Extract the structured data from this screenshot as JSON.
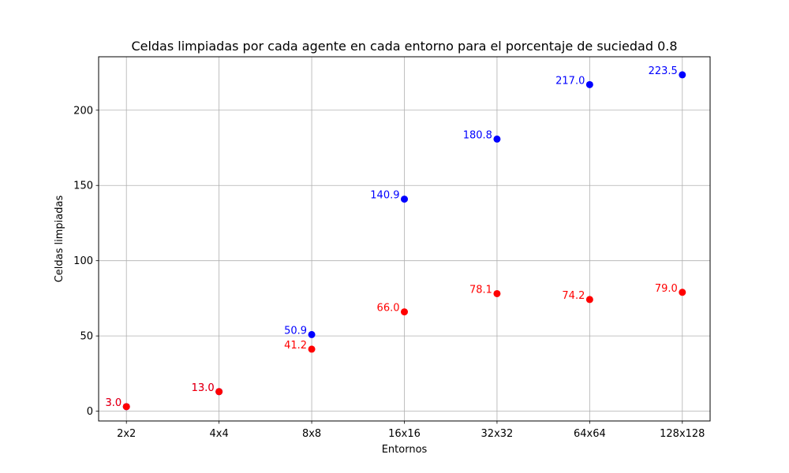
{
  "chart_data": {
    "type": "scatter",
    "title": "Celdas limpiadas por cada agente en cada entorno para el porcentaje de suciedad 0.8",
    "xlabel": "Entornos",
    "ylabel": "Celdas limpiadas",
    "categories": [
      "2x2",
      "4x4",
      "8x8",
      "16x16",
      "32x32",
      "64x64",
      "128x128"
    ],
    "ylim": [
      -6.5,
      235.5
    ],
    "yticks": [
      0,
      50,
      100,
      150,
      200
    ],
    "grid": true,
    "series": [
      {
        "color": "#0000ff",
        "values": [
          3.0,
          13.0,
          50.9,
          140.9,
          180.8,
          217.0,
          223.5
        ],
        "labels": [
          "3.0",
          "13.0",
          "50.9",
          "140.9",
          "180.8",
          "217.0",
          "223.5"
        ]
      },
      {
        "color": "#ff0000",
        "values": [
          3.0,
          13.0,
          41.2,
          66.0,
          78.1,
          74.2,
          79.0
        ],
        "labels": [
          "3.0",
          "13.0",
          "41.2",
          "66.0",
          "78.1",
          "74.2",
          "79.0"
        ]
      }
    ]
  }
}
